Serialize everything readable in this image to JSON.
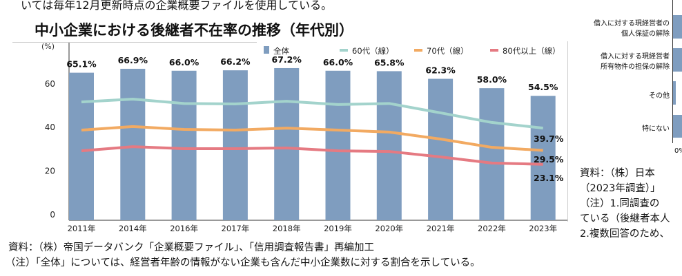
{
  "header": {
    "top_text": "いては毎年12月更新時点の企業概要ファイルを使用している。",
    "title": "中小企業における後継者不在率の推移（年代別）"
  },
  "chart_data": {
    "type": "bar",
    "title": "中小企業における後継者不在率の推移（年代別）",
    "ylabel": "(%)",
    "ylim": [
      0,
      70
    ],
    "yticks": [
      0,
      20,
      40,
      60
    ],
    "categories": [
      "2011年",
      "2014年",
      "2016年",
      "2017年",
      "2018年",
      "2019年",
      "2020年",
      "2021年",
      "2022年",
      "2023年"
    ],
    "legend_position": "top-right",
    "series": [
      {
        "name": "全体",
        "type": "bar",
        "color": "#7f9dbf",
        "values": [
          65.1,
          66.9,
          66.0,
          66.2,
          67.2,
          66.0,
          65.8,
          62.3,
          58.0,
          54.5
        ],
        "labels": [
          "65.1%",
          "66.9%",
          "66.0%",
          "66.2%",
          "67.2%",
          "66.0%",
          "65.8%",
          "62.3%",
          "58.0%",
          "54.5%"
        ]
      },
      {
        "name": "60代（線）",
        "type": "line",
        "color": "#a3d3cc",
        "values": [
          51.7,
          53.0,
          51.0,
          50.8,
          52.0,
          50.5,
          51.0,
          46.7,
          42.3,
          39.7
        ],
        "end_label": "39.7%"
      },
      {
        "name": "70代（線）",
        "type": "line",
        "color": "#f2aa62",
        "values": [
          38.8,
          40.4,
          39.1,
          38.8,
          39.7,
          38.8,
          37.9,
          34.7,
          30.9,
          29.5
        ],
        "end_label": "29.5%"
      },
      {
        "name": "80代以上（線）",
        "type": "line",
        "color": "#e57a82",
        "values": [
          29.3,
          31.2,
          30.3,
          30.3,
          30.6,
          29.3,
          29.0,
          26.5,
          23.7,
          23.1
        ],
        "end_label": "23.1%"
      }
    ]
  },
  "source": {
    "line1": "資料：（株）帝国データバンク「企業概要ファイル」、「信用調査報告書」再編加工",
    "line2": "（注）「全体」については、経営者年齢の情報がない企業も含んだ中小企業数に対する割合を示している。"
  },
  "right_panel": {
    "labels": [
      [
        "借入に対する現経営者の",
        "個人保証の解除"
      ],
      [
        "借入に対する現経営者",
        "所有物件の担保の解除"
      ],
      [
        "その他"
      ],
      [
        "特にない"
      ]
    ],
    "axis_start": "0%",
    "source_lines": [
      "資料：（株）日本",
      "（2023年調査）」",
      "（注）1.同調査の",
      "ている（後継者本人",
      "2.複数回答のため、"
    ]
  }
}
